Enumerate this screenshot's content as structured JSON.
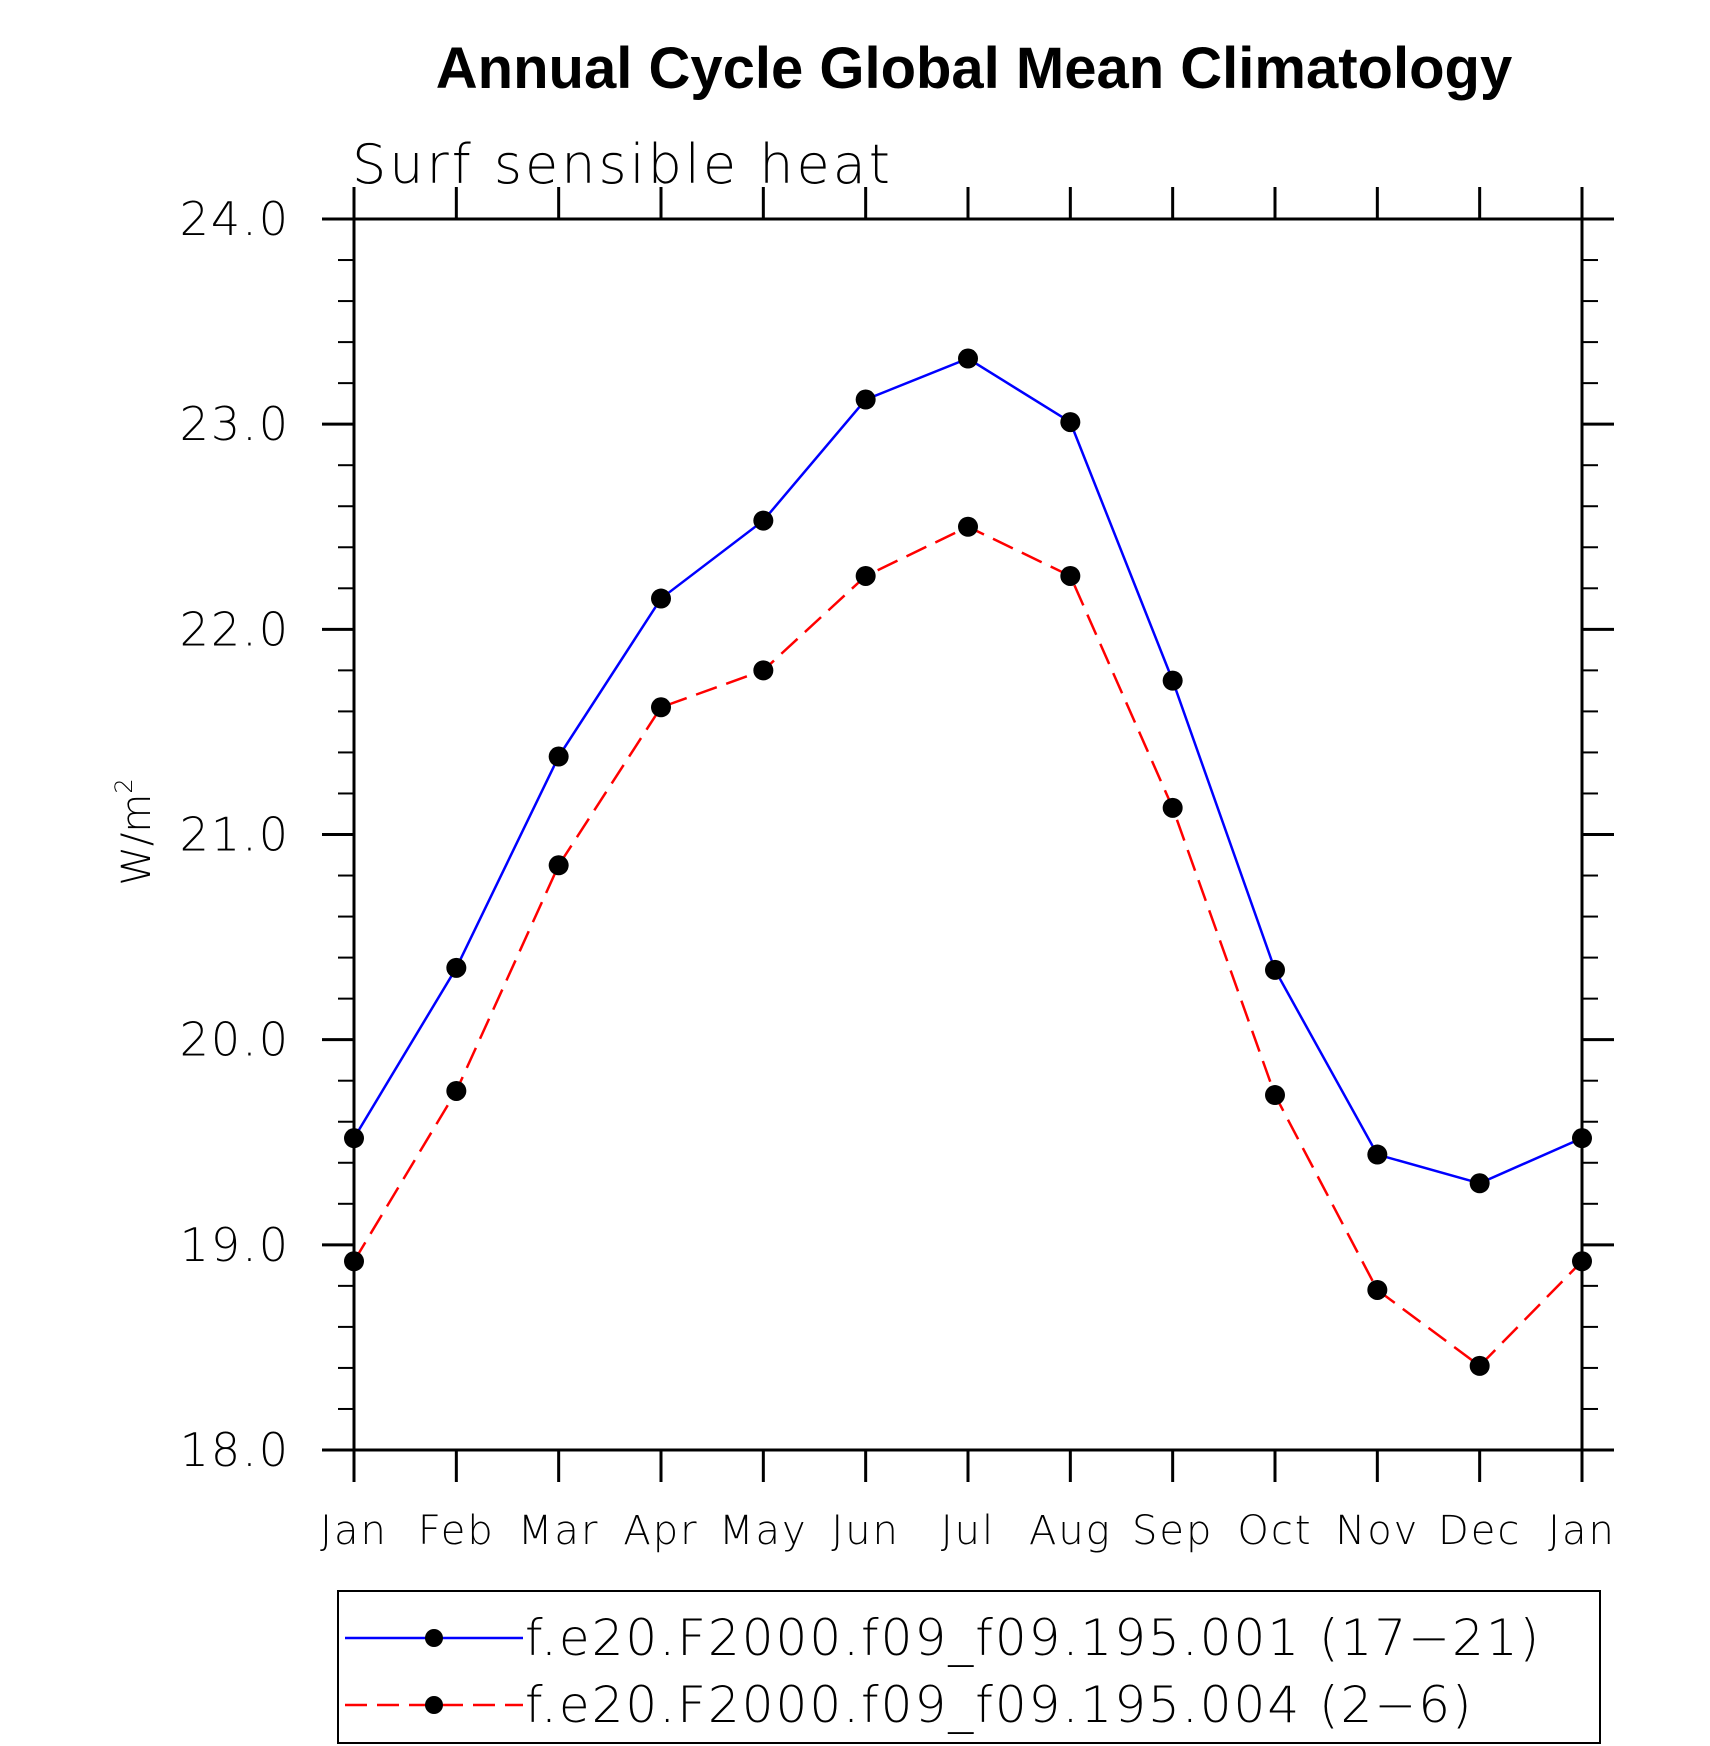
{
  "chart_data": {
    "type": "line",
    "title": "Annual Cycle Global Mean Climatology",
    "subtitle": "Surf sensible heat",
    "ylabel": "W/m",
    "ylabel_superscript": "2",
    "xlabel": "",
    "categories": [
      "Jan",
      "Feb",
      "Mar",
      "Apr",
      "May",
      "Jun",
      "Jul",
      "Aug",
      "Sep",
      "Oct",
      "Nov",
      "Dec",
      "Jan"
    ],
    "ylim": [
      18.0,
      24.0
    ],
    "yticks": [
      "18.0",
      "19.0",
      "20.0",
      "21.0",
      "22.0",
      "23.0",
      "24.0"
    ],
    "grid": false,
    "legend_position": "bottom",
    "series": [
      {
        "name": "f.e20.F2000.f09_f09.195.001 (17−21)",
        "color": "#0000ff",
        "line_style": "solid",
        "marker": "filled-circle",
        "values": [
          19.52,
          20.35,
          21.38,
          22.15,
          22.53,
          23.12,
          23.32,
          23.01,
          21.75,
          20.34,
          19.44,
          19.3,
          19.52
        ]
      },
      {
        "name": "f.e20.F2000.f09_f09.195.004 (2−6)",
        "color": "#ff0000",
        "line_style": "dashed",
        "marker": "filled-circle",
        "values": [
          18.92,
          19.75,
          20.85,
          21.62,
          21.8,
          22.26,
          22.5,
          22.26,
          21.13,
          19.73,
          18.78,
          18.41,
          18.92
        ]
      }
    ]
  }
}
